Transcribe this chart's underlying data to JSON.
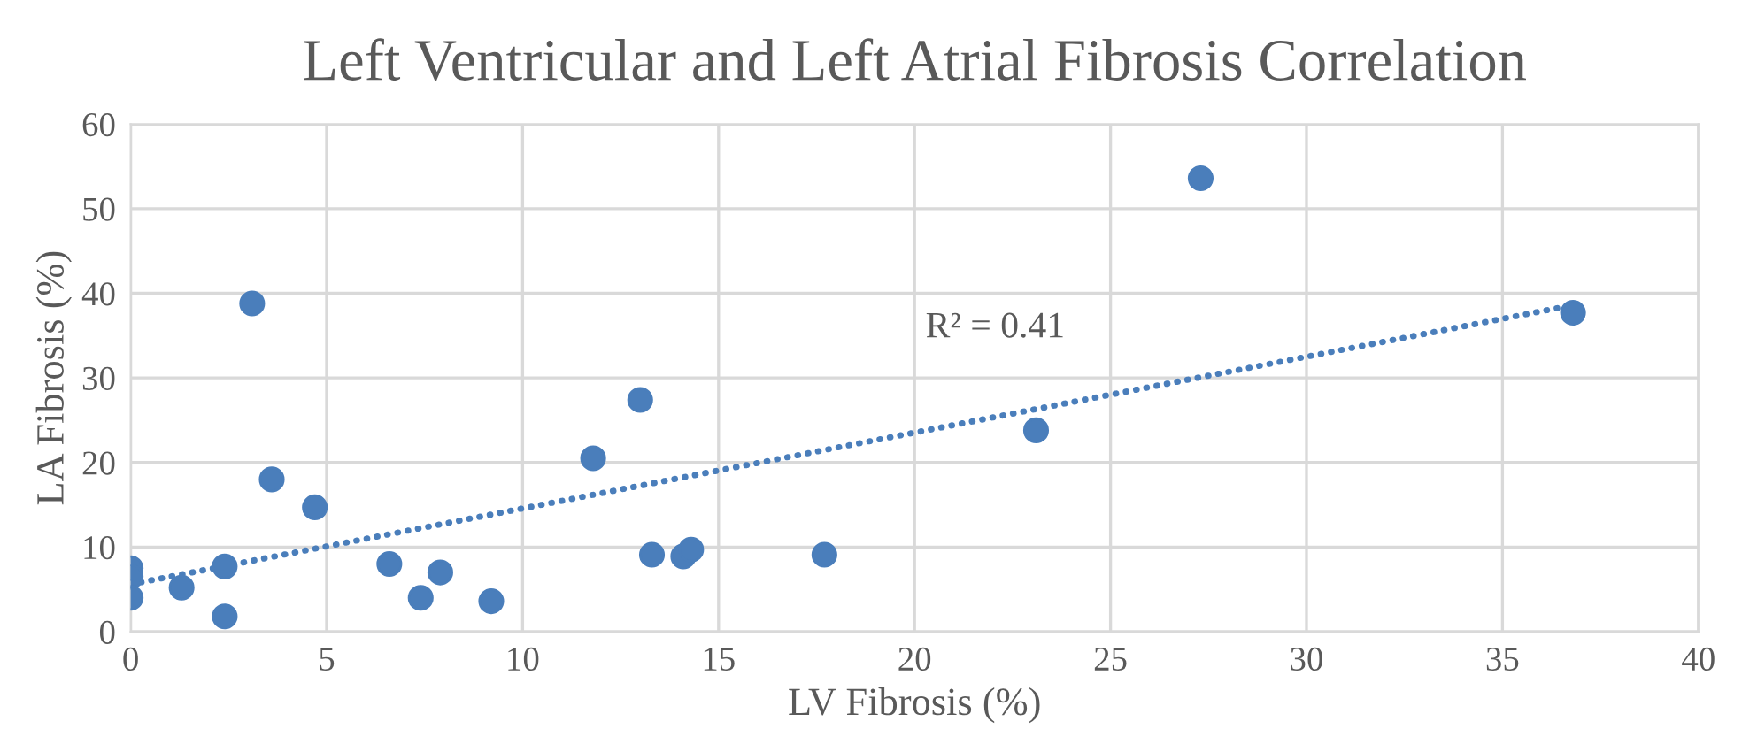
{
  "chart_data": {
    "type": "scatter",
    "title": "Left Ventricular and Left Atrial Fibrosis Correlation",
    "xlabel": "LV Fibrosis (%)",
    "ylabel": "LA Fibrosis (%)",
    "annotations": [
      "R² = 0.41"
    ],
    "xlim": [
      0,
      40
    ],
    "xticks": [
      0,
      5,
      10,
      15,
      20,
      25,
      30,
      35,
      40
    ],
    "ylim": [
      0,
      60
    ],
    "yticks": [
      0,
      10,
      20,
      30,
      40,
      50,
      60
    ],
    "grid": true,
    "legend": false,
    "marker": "circle",
    "series": [
      {
        "color": "#4a7ebb",
        "x": [
          0,
          0,
          0,
          1.3,
          2.4,
          2.4,
          3.1,
          3.6,
          4.7,
          6.6,
          7.4,
          7.9,
          9.2,
          11.8,
          13.0,
          13.3,
          14.1,
          14.3,
          17.7,
          23.1,
          27.3,
          36.8
        ],
        "values": [
          7.5,
          6.5,
          4,
          5.2,
          7.7,
          1.8,
          38.8,
          18,
          14.7,
          8,
          4,
          7,
          3.6,
          20.5,
          27.4,
          9.1,
          8.9,
          9.7,
          9.1,
          23.8,
          53.6,
          37.7
        ]
      },
      {
        "type": "line",
        "color": "#4a7ebb",
        "line_style": "dotted",
        "marker": "none",
        "x": [
          0,
          36.8
        ],
        "values": [
          5.6,
          38.6
        ]
      }
    ]
  }
}
